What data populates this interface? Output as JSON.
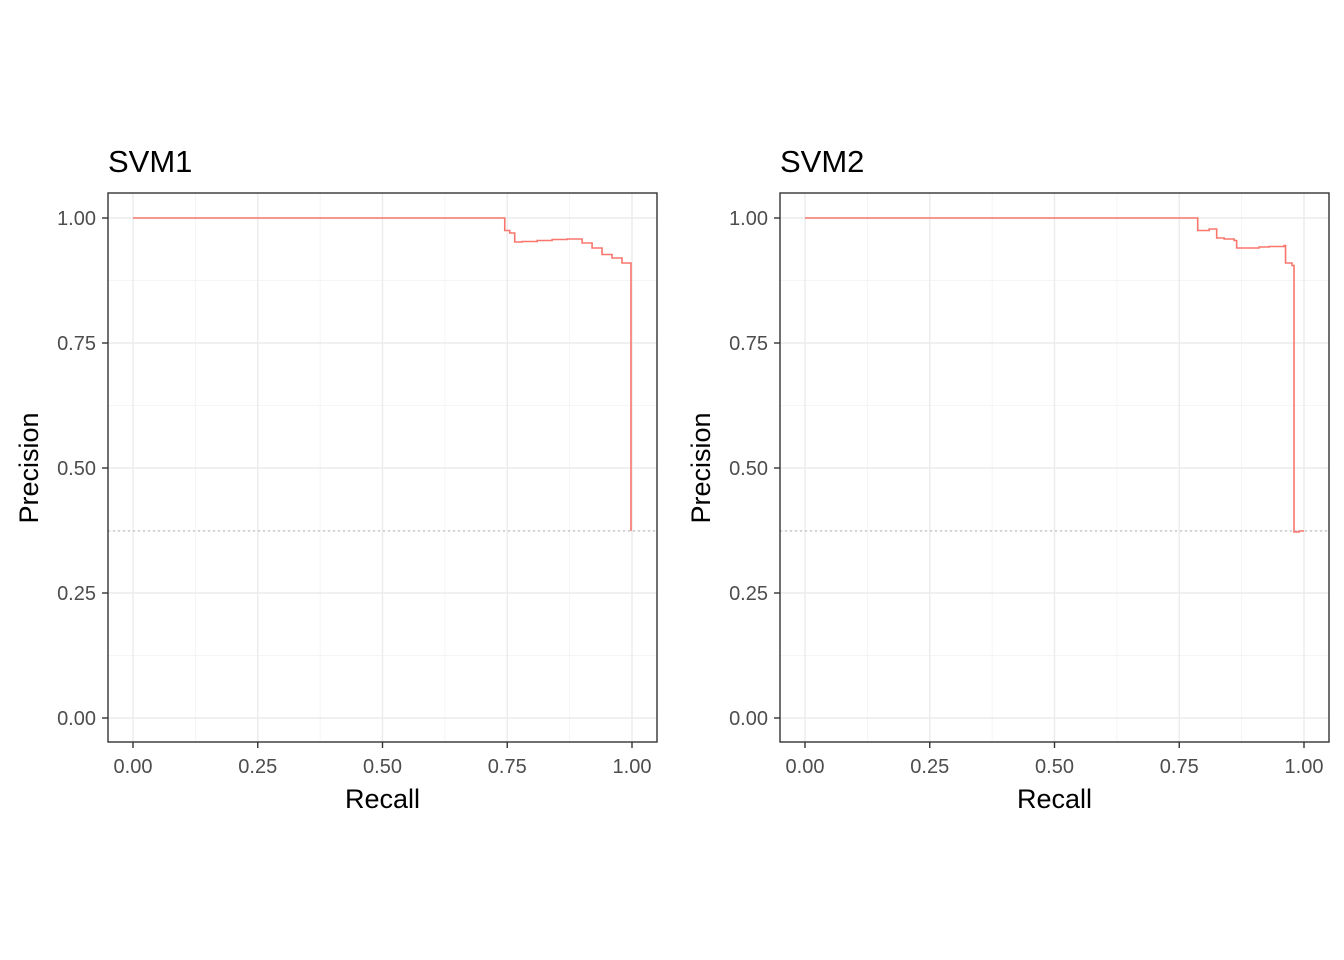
{
  "chart_data": [
    {
      "type": "line",
      "title": "SVM1",
      "xlabel": "Recall",
      "ylabel": "Precision",
      "xlim": [
        0,
        1
      ],
      "ylim": [
        0,
        1
      ],
      "x_ticks": [
        "0.00",
        "0.25",
        "0.50",
        "0.75",
        "1.00"
      ],
      "y_ticks": [
        "0.00",
        "0.25",
        "0.50",
        "0.75",
        "1.00"
      ],
      "baseline": 0.374,
      "grid": true,
      "color": "#f8766d",
      "series": [
        {
          "step": true,
          "x": [
            0.0,
            0.745,
            0.745,
            0.755,
            0.765,
            0.78,
            0.81,
            0.84,
            0.87,
            0.9,
            0.92,
            0.94,
            0.96,
            0.98,
            0.998
          ],
          "y": [
            1.0,
            1.0,
            0.975,
            0.97,
            0.952,
            0.953,
            0.955,
            0.957,
            0.958,
            0.95,
            0.94,
            0.927,
            0.92,
            0.91,
            0.374
          ]
        }
      ]
    },
    {
      "type": "line",
      "title": "SVM2",
      "xlabel": "Recall",
      "ylabel": "Precision",
      "xlim": [
        0,
        1
      ],
      "ylim": [
        0,
        1
      ],
      "x_ticks": [
        "0.00",
        "0.25",
        "0.50",
        "0.75",
        "1.00"
      ],
      "y_ticks": [
        "0.00",
        "0.25",
        "0.50",
        "0.75",
        "1.00"
      ],
      "baseline": 0.374,
      "grid": true,
      "color": "#f8766d",
      "series": [
        {
          "step": true,
          "x": [
            0.0,
            0.787,
            0.787,
            0.81,
            0.825,
            0.84,
            0.86,
            0.865,
            0.89,
            0.91,
            0.93,
            0.96,
            0.963,
            0.976,
            0.98,
            0.99,
            1.0
          ],
          "y": [
            1.0,
            1.0,
            0.975,
            0.978,
            0.96,
            0.958,
            0.955,
            0.94,
            0.94,
            0.942,
            0.943,
            0.945,
            0.91,
            0.905,
            0.372,
            0.374,
            0.374
          ]
        }
      ]
    }
  ]
}
